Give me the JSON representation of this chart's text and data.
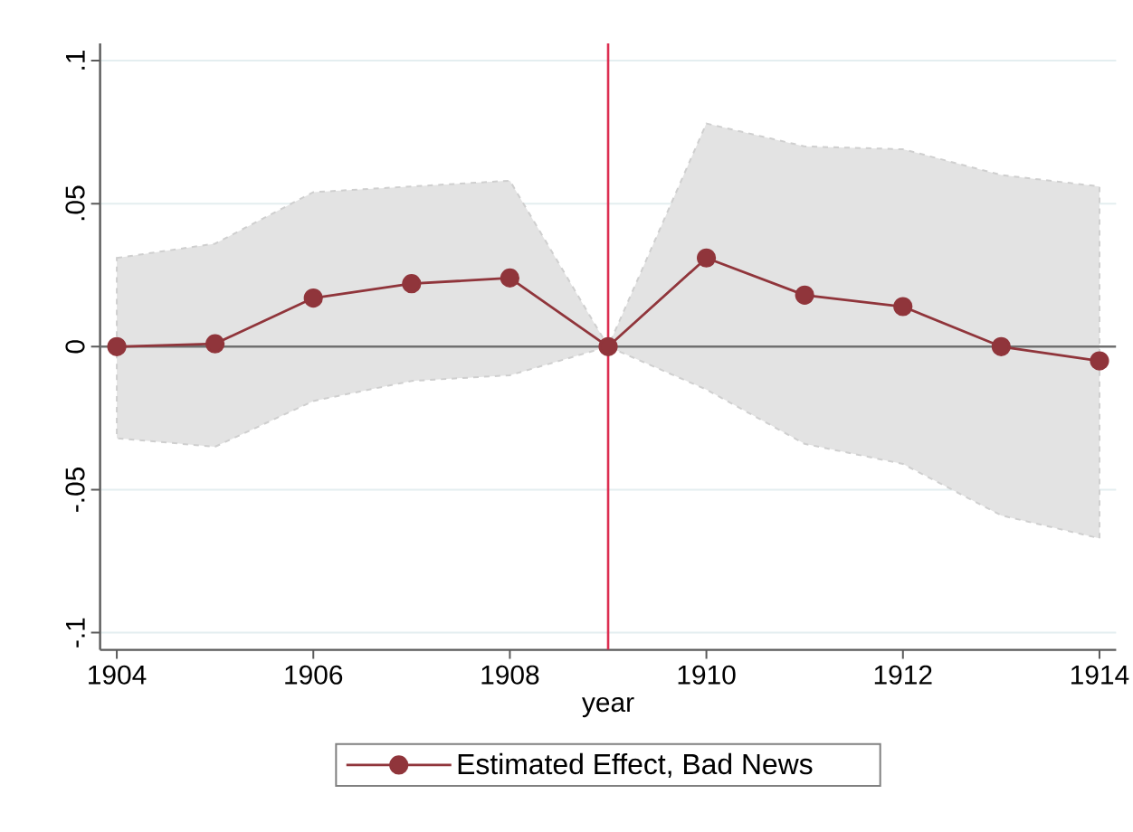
{
  "chart_data": {
    "type": "line",
    "xlabel": "year",
    "x": [
      1904,
      1905,
      1906,
      1907,
      1908,
      1909,
      1910,
      1911,
      1912,
      1913,
      1914
    ],
    "series": [
      {
        "name": "Estimated Effect, Bad News",
        "color": "#90353b",
        "values": [
          0,
          0.001,
          0.017,
          0.022,
          0.024,
          0,
          0.031,
          0.018,
          0.014,
          0,
          -0.005
        ],
        "lower": [
          -0.032,
          -0.035,
          -0.019,
          -0.012,
          -0.01,
          0,
          -0.015,
          -0.034,
          -0.041,
          -0.059,
          -0.067
        ],
        "upper": [
          0.031,
          0.036,
          0.054,
          0.056,
          0.058,
          0,
          0.078,
          0.07,
          0.069,
          0.06,
          0.056
        ]
      }
    ],
    "xlim": [
      1903.83,
      1914.17
    ],
    "ylim": [
      -0.106,
      0.106
    ],
    "xticks": [
      1904,
      1906,
      1908,
      1910,
      1912,
      1914
    ],
    "yticks": [
      {
        "value": -0.1,
        "label": "-.1"
      },
      {
        "value": -0.05,
        "label": "-.05"
      },
      {
        "value": 0,
        "label": "0"
      },
      {
        "value": 0.05,
        "label": ".05"
      },
      {
        "value": 0.1,
        "label": ".1"
      }
    ],
    "grid": "y",
    "legend": "bottom",
    "marker": "circle",
    "line_style": "solid",
    "ref_lines": [
      {
        "axis": "y",
        "value": 0,
        "color": "#707070"
      },
      {
        "axis": "x",
        "value": 1909,
        "color": "#dc2d50"
      }
    ]
  }
}
